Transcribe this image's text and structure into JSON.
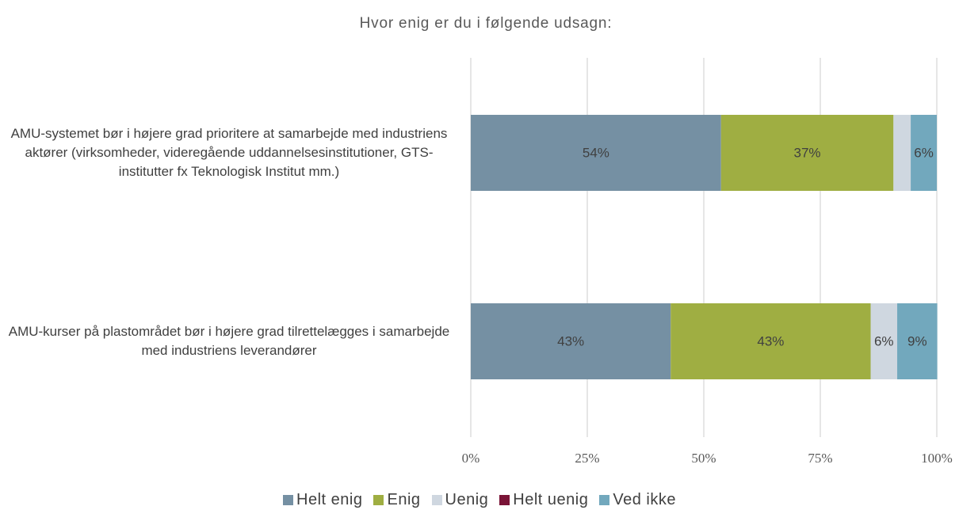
{
  "chart_data": {
    "type": "stacked_barh",
    "title": "Hvor enig er du i følgende udsagn:",
    "categories": [
      "AMU-systemet bør i højere grad prioritere at samarbejde med industriens aktører (virksomheder, videregående uddannelsesinstitutioner, GTS-institutter fx Teknologisk Institut mm.)",
      "AMU-kurser på plastområdet bør i højere grad tilrettelægges i samarbejde med industriens leverandører"
    ],
    "series": [
      {
        "name": "Helt enig",
        "color": "#7590a3",
        "values": [
          53.7,
          42.9
        ],
        "value_labels": [
          "54%",
          "43%"
        ]
      },
      {
        "name": "Enig",
        "color": "#9fae42",
        "values": [
          37.0,
          42.9
        ],
        "value_labels": [
          "37%",
          "43%"
        ]
      },
      {
        "name": "Uenig",
        "color": "#cfd7e0",
        "values": [
          3.7,
          5.7
        ],
        "value_labels": [
          null,
          "6%"
        ]
      },
      {
        "name": "Helt uenig",
        "color": "#7a1437",
        "values": [
          0,
          0
        ],
        "value_labels": [
          null,
          null
        ]
      },
      {
        "name": "Ved ikke",
        "color": "#72a8bd",
        "values": [
          5.6,
          8.6
        ],
        "value_labels": [
          "6%",
          "9%"
        ]
      }
    ],
    "xlim": [
      0,
      100
    ],
    "xticks": [
      {
        "value": 0,
        "label": "0%"
      },
      {
        "value": 25,
        "label": "25%"
      },
      {
        "value": 50,
        "label": "50%"
      },
      {
        "value": 75,
        "label": "75%"
      },
      {
        "value": 100,
        "label": "100%"
      }
    ],
    "grid": true
  }
}
